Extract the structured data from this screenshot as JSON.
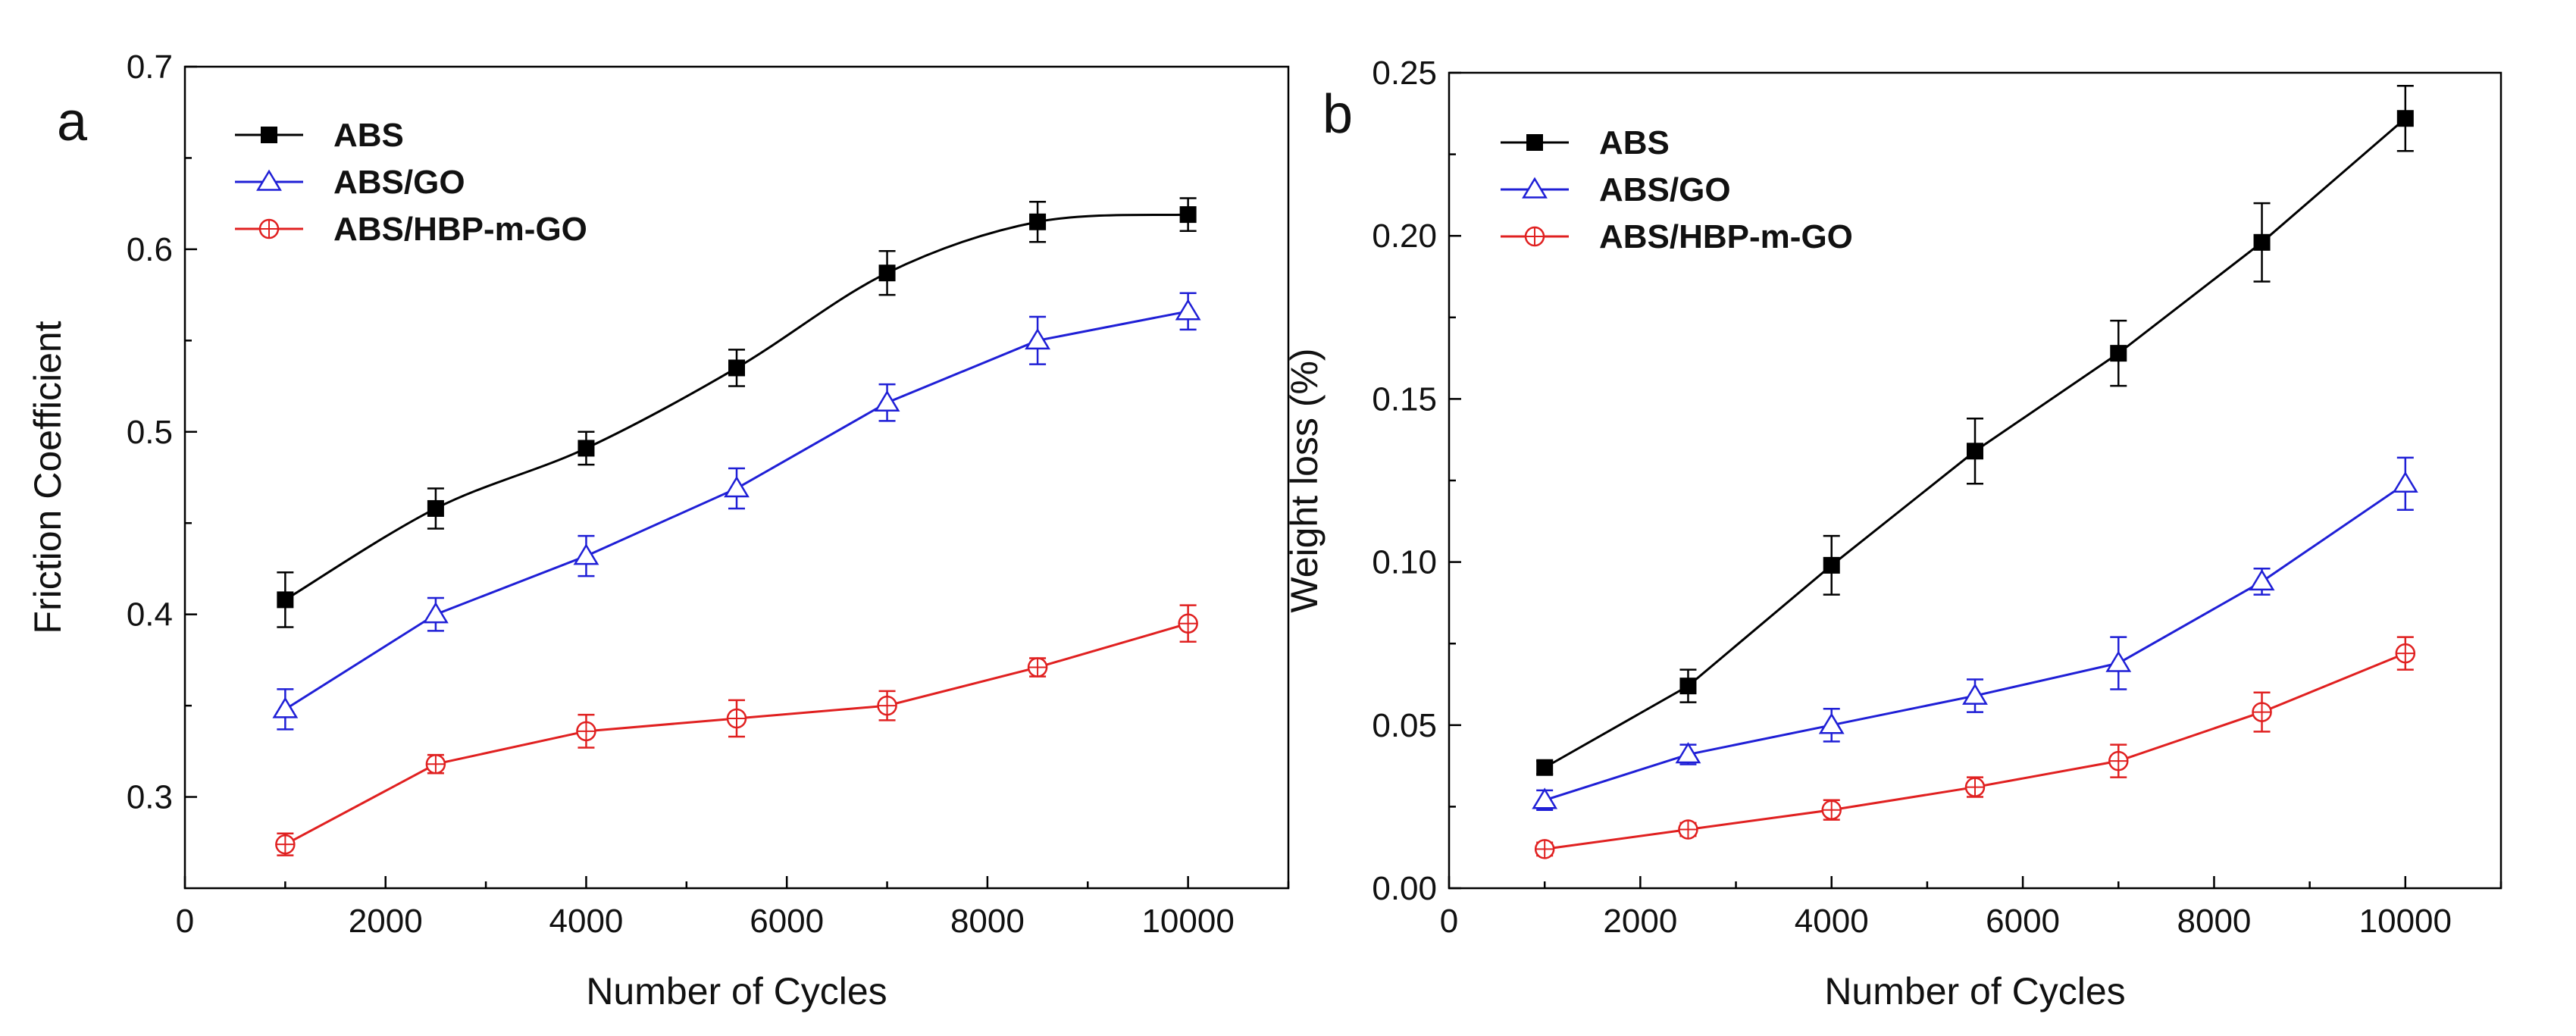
{
  "chart_data": [
    {
      "type": "line",
      "panel_label": "a",
      "title": "",
      "xlabel": "Number of Cycles",
      "ylabel": "Friction Coefficient",
      "xlim": [
        0,
        11000
      ],
      "ylim": [
        0.25,
        0.7
      ],
      "xticks": [
        0,
        2000,
        4000,
        6000,
        8000,
        10000
      ],
      "xtick_labels": [
        "0",
        "2000",
        "4000",
        "6000",
        "8000",
        "10000"
      ],
      "yticks": [
        0.3,
        0.4,
        0.5,
        0.6,
        0.7
      ],
      "ytick_labels": [
        "0.3",
        "0.4",
        "0.5",
        "0.6",
        "0.7"
      ],
      "grid": false,
      "legend_position": "top-left",
      "x": [
        1000,
        2500,
        4000,
        5500,
        7000,
        8500,
        10000
      ],
      "series": [
        {
          "name": "ABS",
          "color": "#000000",
          "marker": "filled-square",
          "smooth": true,
          "values": [
            0.408,
            0.458,
            0.491,
            0.535,
            0.587,
            0.615,
            0.619
          ],
          "errors": [
            0.015,
            0.011,
            0.009,
            0.01,
            0.012,
            0.011,
            0.009
          ]
        },
        {
          "name": "ABS/GO",
          "color": "#1f1fd6",
          "marker": "open-triangle",
          "smooth": false,
          "values": [
            0.348,
            0.4,
            0.432,
            0.469,
            0.516,
            0.55,
            0.566
          ],
          "errors": [
            0.011,
            0.009,
            0.011,
            0.011,
            0.01,
            0.013,
            0.01
          ]
        },
        {
          "name": "ABS/HBP-m-GO",
          "color": "#e02020",
          "marker": "open-circle-cross",
          "smooth": false,
          "values": [
            0.274,
            0.318,
            0.336,
            0.343,
            0.35,
            0.371,
            0.395
          ],
          "errors": [
            0.006,
            0.005,
            0.009,
            0.01,
            0.008,
            0.005,
            0.01
          ]
        }
      ]
    },
    {
      "type": "line",
      "panel_label": "b",
      "title": "",
      "xlabel": "Number of Cycles",
      "ylabel": "Weight loss (%)",
      "xlim": [
        0,
        11000
      ],
      "ylim": [
        0,
        0.25
      ],
      "xticks": [
        0,
        2000,
        4000,
        6000,
        8000,
        10000
      ],
      "xtick_labels": [
        "0",
        "2000",
        "4000",
        "6000",
        "8000",
        "10000"
      ],
      "yticks": [
        0,
        0.05,
        0.1,
        0.15,
        0.2,
        0.25
      ],
      "ytick_labels": [
        "0.00",
        "0.05",
        "0.10",
        "0.15",
        "0.20",
        "0.25"
      ],
      "grid": false,
      "legend_position": "top-left",
      "x": [
        1000,
        2500,
        4000,
        5500,
        7000,
        8500,
        10000
      ],
      "series": [
        {
          "name": "ABS",
          "color": "#000000",
          "marker": "filled-square",
          "smooth": false,
          "values": [
            0.037,
            0.062,
            0.099,
            0.134,
            0.164,
            0.198,
            0.236
          ],
          "errors": [
            0.002,
            0.005,
            0.009,
            0.01,
            0.01,
            0.012,
            0.01
          ]
        },
        {
          "name": "ABS/GO",
          "color": "#1f1fd6",
          "marker": "open-triangle",
          "smooth": false,
          "values": [
            0.027,
            0.041,
            0.05,
            0.059,
            0.069,
            0.094,
            0.124
          ],
          "errors": [
            0.003,
            0.003,
            0.005,
            0.005,
            0.008,
            0.004,
            0.008
          ]
        },
        {
          "name": "ABS/HBP-m-GO",
          "color": "#e02020",
          "marker": "open-circle-cross",
          "smooth": false,
          "values": [
            0.012,
            0.018,
            0.024,
            0.031,
            0.039,
            0.054,
            0.072
          ],
          "errors": [
            0.002,
            0.002,
            0.003,
            0.003,
            0.005,
            0.006,
            0.005
          ]
        }
      ]
    }
  ]
}
